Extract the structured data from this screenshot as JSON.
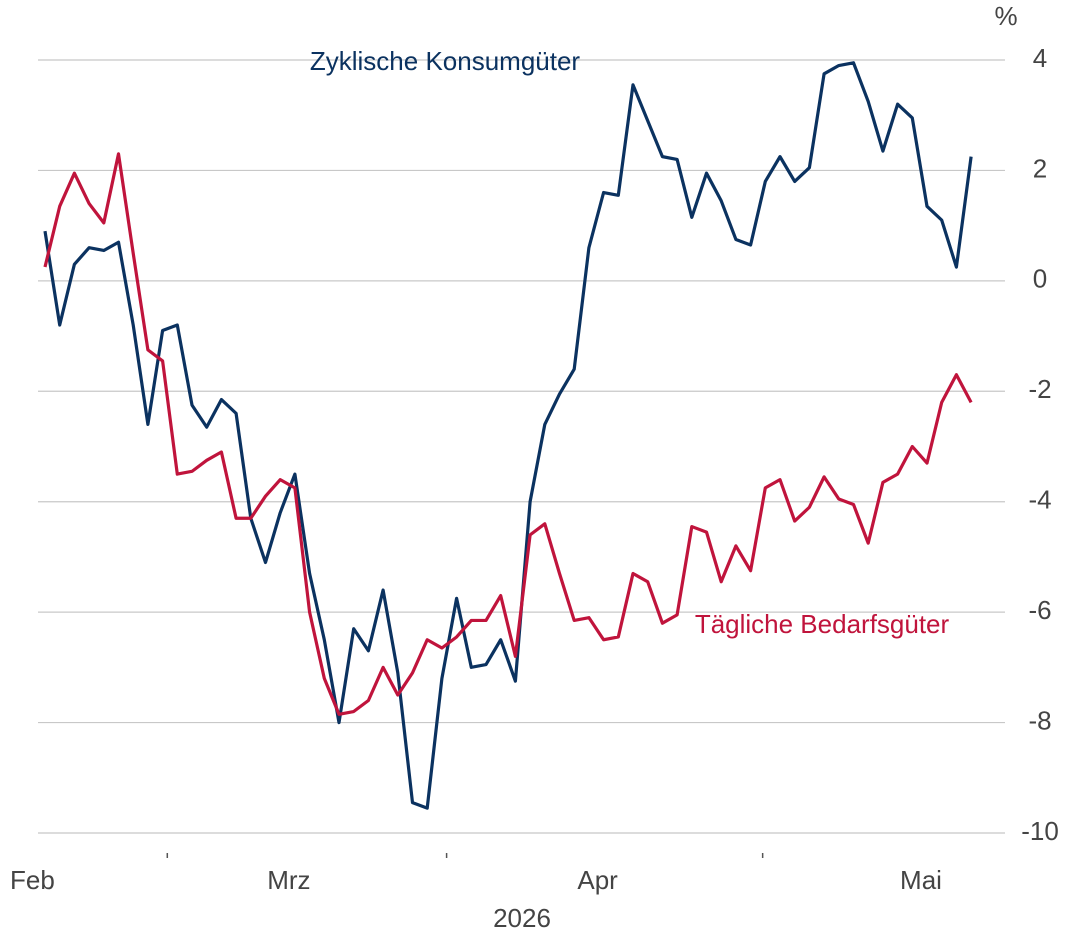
{
  "chart_data": {
    "type": "line",
    "y_unit": "%",
    "x_label": "2026",
    "categories": [
      "Feb",
      null,
      null,
      null,
      null,
      null,
      null,
      null,
      null,
      null,
      null,
      null,
      null,
      null,
      null,
      null,
      null,
      "Mrz",
      null,
      null,
      null,
      null,
      null,
      null,
      null,
      null,
      null,
      null,
      null,
      null,
      null,
      null,
      null,
      null,
      null,
      null,
      null,
      null,
      "Apr",
      null,
      null,
      null,
      null,
      null,
      null,
      null,
      null,
      null,
      null,
      null,
      null,
      null,
      null,
      null,
      null,
      null,
      null,
      null,
      null,
      null,
      "Mai",
      null,
      null,
      null
    ],
    "series": [
      {
        "name": "Zyklische Konsumgüter",
        "color": "#0b3260",
        "values": [
          0.9,
          -0.8,
          0.3,
          0.6,
          0.55,
          0.7,
          -0.8,
          -2.6,
          -0.9,
          -0.8,
          -2.25,
          -2.65,
          -2.15,
          -2.4,
          -4.3,
          -5.1,
          -4.2,
          -3.5,
          -5.3,
          -6.5,
          -8.0,
          -6.3,
          -6.7,
          -5.6,
          -7.1,
          -9.45,
          -9.55,
          -7.2,
          -5.75,
          -7.0,
          -6.95,
          -6.5,
          -7.25,
          -4.0,
          -2.6,
          -2.05,
          -1.6,
          0.6,
          1.6,
          1.55,
          3.55,
          2.9,
          2.25,
          2.2,
          1.15,
          1.95,
          1.45,
          0.75,
          0.65,
          1.8,
          2.25,
          1.8,
          2.05,
          3.75,
          3.9,
          3.95,
          3.25,
          2.35,
          3.2,
          2.95,
          1.35,
          1.1,
          0.25,
          2.25
        ]
      },
      {
        "name": "Tägliche Bedarfsgüter",
        "color": "#c0143c",
        "values": [
          0.25,
          1.35,
          1.95,
          1.4,
          1.05,
          2.3,
          0.5,
          -1.25,
          -1.45,
          -3.5,
          -3.45,
          -3.25,
          -3.1,
          -4.3,
          -4.3,
          -3.9,
          -3.6,
          -3.75,
          -6.0,
          -7.2,
          -7.85,
          -7.8,
          -7.6,
          -7.0,
          -7.5,
          -7.1,
          -6.5,
          -6.65,
          -6.45,
          -6.15,
          -6.15,
          -5.7,
          -6.8,
          -4.6,
          -4.4,
          -5.3,
          -6.15,
          -6.1,
          -6.5,
          -6.45,
          -5.3,
          -5.45,
          -6.2,
          -6.05,
          -4.45,
          -4.55,
          -5.45,
          -4.8,
          -5.25,
          -3.75,
          -3.6,
          -4.35,
          -4.1,
          -3.55,
          -3.95,
          -4.05,
          -4.75,
          -3.65,
          -3.5,
          -3.0,
          -3.3,
          -2.2,
          -1.7,
          -2.2
        ]
      }
    ],
    "ylim": [
      -10,
      4
    ],
    "yticks": [
      -10,
      -8,
      -6,
      -4,
      -2,
      0,
      2,
      4
    ],
    "grid": true
  }
}
